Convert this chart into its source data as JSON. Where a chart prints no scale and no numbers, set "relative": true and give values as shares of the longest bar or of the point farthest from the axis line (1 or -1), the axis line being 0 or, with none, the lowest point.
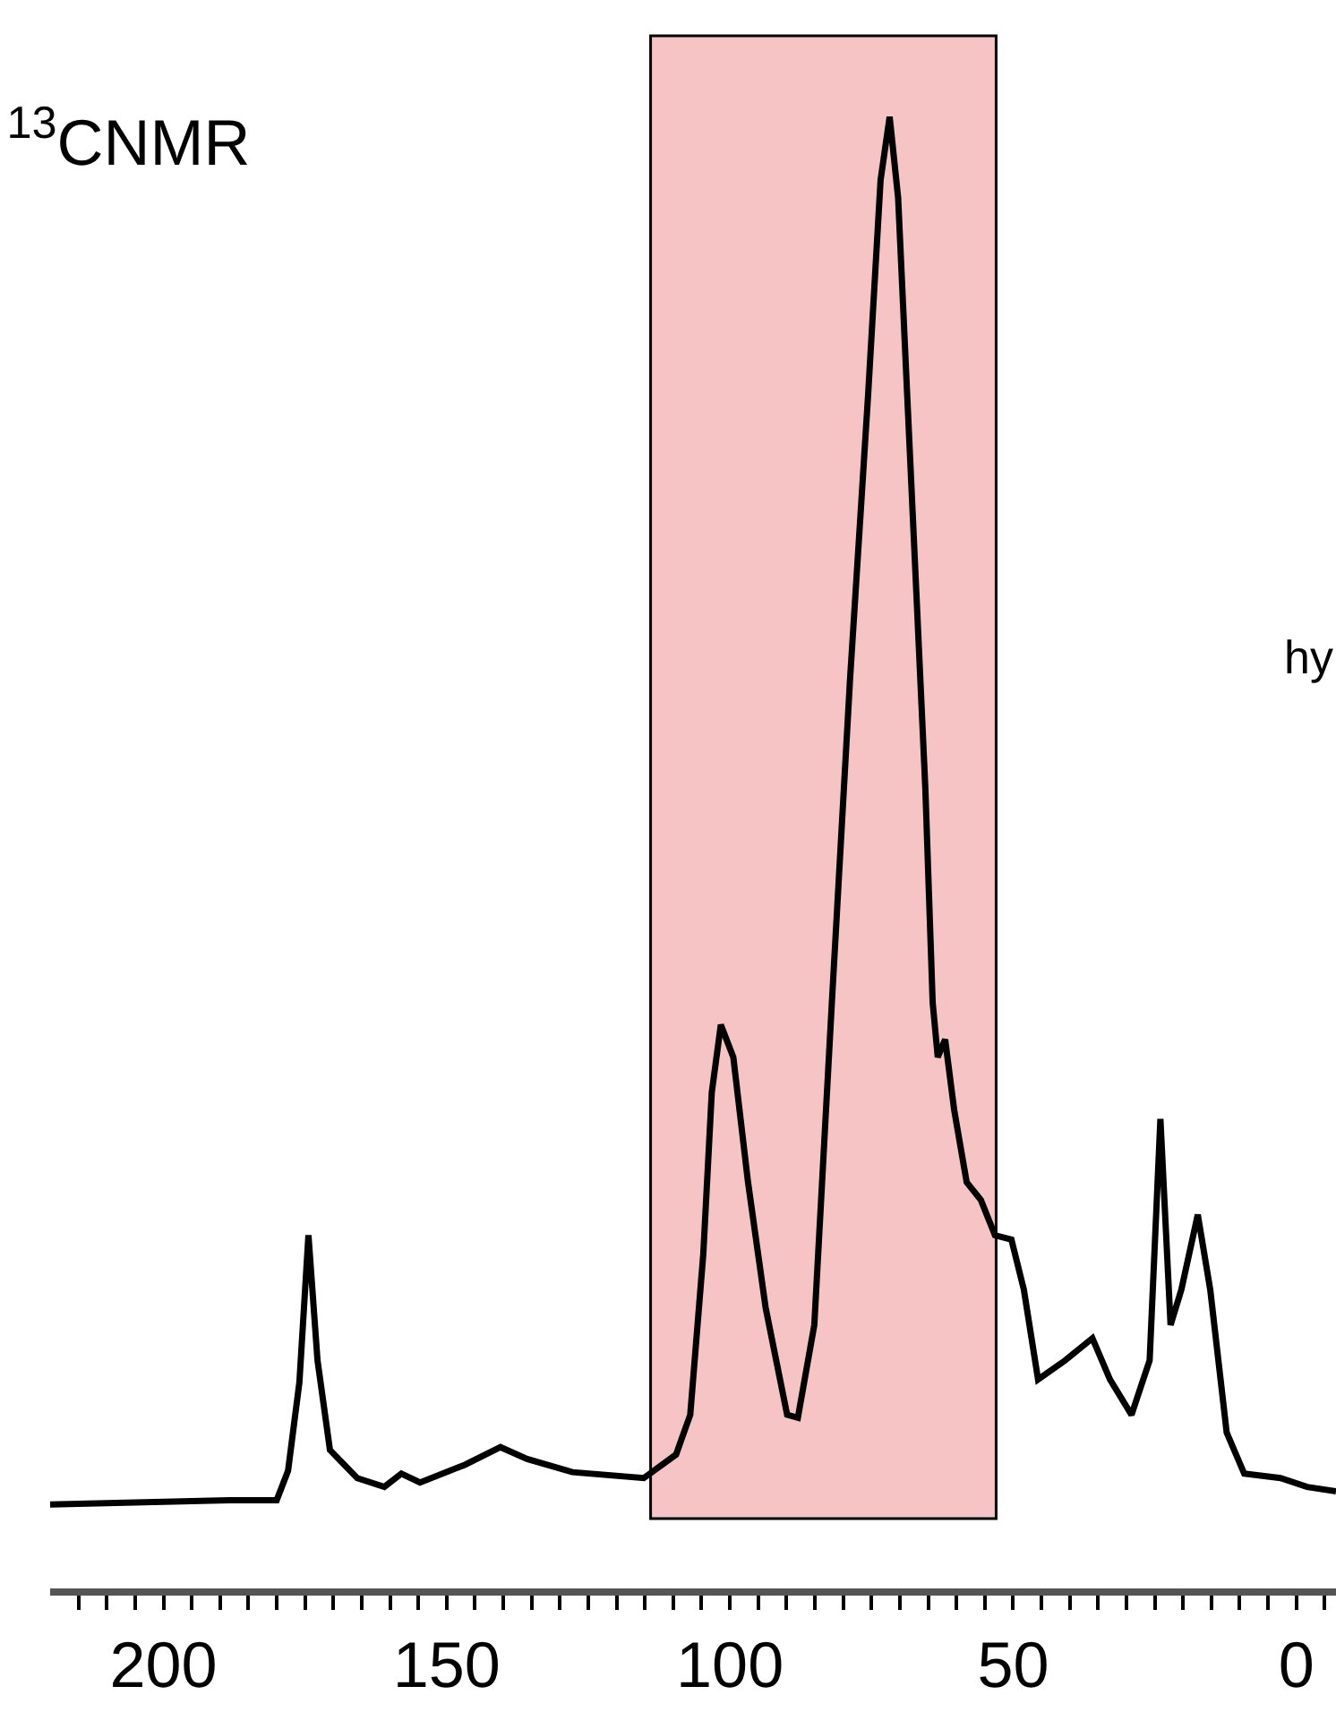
{
  "chart_data": {
    "type": "line",
    "title": "$^{13}$CNMR",
    "relative": true,
    "grid": false,
    "marker": "none",
    "line_style": "solid",
    "annotations": [
      "hy"
    ],
    "xlim": [
      220,
      -7
    ],
    "xticks": [
      {
        "value": 215,
        "label": null
      },
      200,
      {
        "value": 210,
        "label": null
      },
      {
        "value": 205,
        "label": null
      },
      {
        "value": 195,
        "label": null
      },
      {
        "value": 190,
        "label": null
      },
      {
        "value": 185,
        "label": null
      },
      {
        "value": 180,
        "label": null
      },
      {
        "value": 175,
        "label": null
      },
      {
        "value": 170,
        "label": null
      },
      {
        "value": 165,
        "label": null
      },
      {
        "value": 160,
        "label": null
      },
      {
        "value": 155,
        "label": null
      },
      150,
      {
        "value": 145,
        "label": null
      },
      {
        "value": 140,
        "label": null
      },
      {
        "value": 135,
        "label": null
      },
      {
        "value": 130,
        "label": null
      },
      {
        "value": 125,
        "label": null
      },
      {
        "value": 120,
        "label": null
      },
      {
        "value": 115,
        "label": null
      },
      {
        "value": 110,
        "label": null
      },
      {
        "value": 105,
        "label": null
      },
      100,
      {
        "value": 95,
        "label": null
      },
      {
        "value": 90,
        "label": null
      },
      {
        "value": 85,
        "label": null
      },
      {
        "value": 80,
        "label": null
      },
      {
        "value": 75,
        "label": null
      },
      {
        "value": 70,
        "label": null
      },
      {
        "value": 65,
        "label": null
      },
      {
        "value": 60,
        "label": null
      },
      {
        "value": 55,
        "label": null
      },
      50,
      {
        "value": 45,
        "label": null
      },
      {
        "value": 40,
        "label": null
      },
      {
        "value": 35,
        "label": null
      },
      {
        "value": 30,
        "label": null
      },
      {
        "value": 25,
        "label": null
      },
      {
        "value": 20,
        "label": null
      },
      {
        "value": 15,
        "label": null
      },
      {
        "value": 10,
        "label": null
      },
      {
        "value": 5,
        "label": null
      },
      0,
      {
        "value": -5,
        "label": null
      }
    ],
    "bands": [
      {
        "axis": "x",
        "from": 114,
        "to": 53,
        "color": "#f6c4c4"
      }
    ],
    "series": [
      {
        "color": "#000000",
        "x": [
          220,
          188,
          180,
          178,
          176,
          174.4,
          172.8,
          170.6,
          165.8,
          161,
          158,
          154.7,
          146.8,
          140.5,
          135.8,
          127.8,
          115.2,
          109.5,
          107,
          104.7,
          103.2,
          101.6,
          99.4,
          96.8,
          93.7,
          89.9,
          88,
          85.1,
          82,
          78.8,
          75.6,
          73.4,
          71.8,
          70.3,
          68.7,
          67.1,
          65.5,
          64.2,
          63.3,
          62,
          60.4,
          58.2,
          55.7,
          53.2,
          50.3,
          48.1,
          45.6,
          40.8,
          36,
          32.9,
          29.1,
          25.9,
          24,
          22.2,
          20.3,
          17.4,
          15.2,
          12.3,
          9.2,
          2.8,
          -1.9,
          -7
        ],
        "values": [
          0.057,
          0.06,
          0.06,
          0.08,
          0.14,
          0.24,
          0.155,
          0.094,
          0.075,
          0.069,
          0.078,
          0.072,
          0.084,
          0.096,
          0.088,
          0.079,
          0.075,
          0.091,
          0.118,
          0.227,
          0.337,
          0.383,
          0.361,
          0.276,
          0.191,
          0.118,
          0.116,
          0.179,
          0.398,
          0.617,
          0.811,
          0.957,
          1.0,
          0.945,
          0.811,
          0.678,
          0.544,
          0.398,
          0.361,
          0.373,
          0.325,
          0.276,
          0.264,
          0.24,
          0.237,
          0.203,
          0.142,
          0.155,
          0.17,
          0.142,
          0.118,
          0.155,
          0.319,
          0.179,
          0.203,
          0.254,
          0.203,
          0.106,
          0.078,
          0.075,
          0.069,
          0.066
        ]
      }
    ]
  }
}
